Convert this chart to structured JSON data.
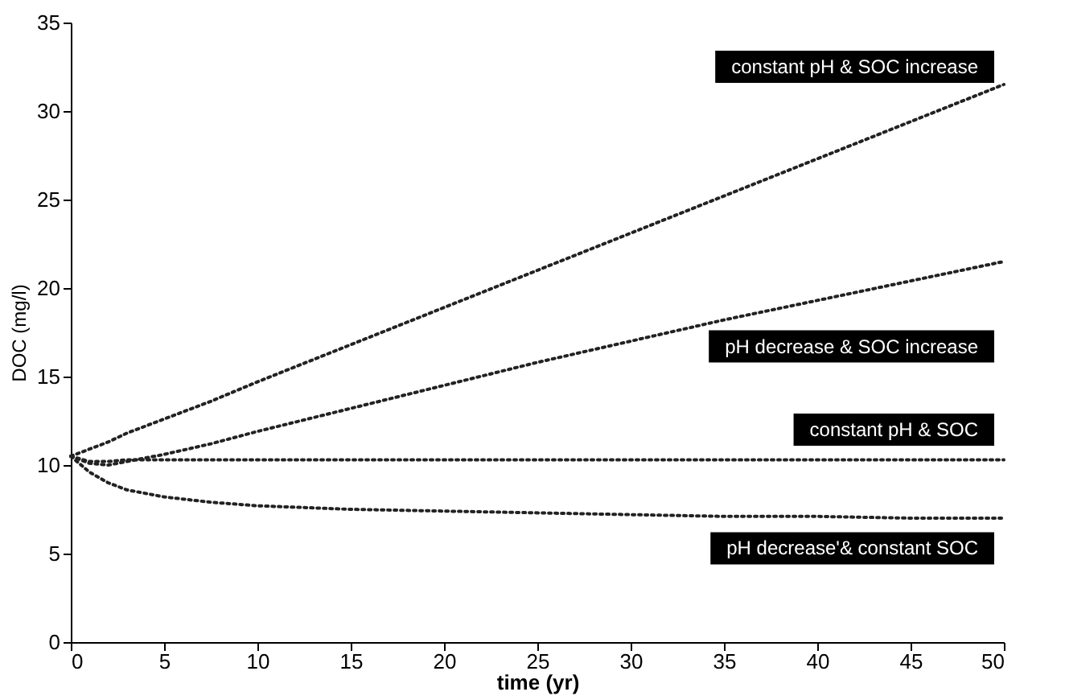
{
  "chart_data": {
    "type": "line",
    "xlabel": "time (yr)",
    "ylabel": "DOC (mg/l)",
    "x": [
      0,
      1,
      2,
      3,
      5,
      7.5,
      10,
      15,
      20,
      25,
      30,
      35,
      40,
      45,
      50
    ],
    "series": [
      {
        "name": "constant pH & SOC increase",
        "color": "#222222",
        "values": [
          10.5,
          10.9,
          11.3,
          11.8,
          12.6,
          13.6,
          14.7,
          16.8,
          18.9,
          21.0,
          23.1,
          25.2,
          27.3,
          29.4,
          31.5
        ]
      },
      {
        "name": "pH decrease & SOC increase",
        "color": "#222222",
        "values": [
          10.5,
          10.1,
          10.0,
          10.2,
          10.6,
          11.2,
          11.9,
          13.2,
          14.5,
          15.8,
          17.0,
          18.2,
          19.3,
          20.4,
          21.5
        ]
      },
      {
        "name": "constant pH & SOC",
        "color": "#222222",
        "values": [
          10.5,
          10.2,
          10.2,
          10.3,
          10.3,
          10.3,
          10.3,
          10.3,
          10.3,
          10.3,
          10.3,
          10.3,
          10.3,
          10.3,
          10.3
        ]
      },
      {
        "name": "pH decrease'& constant SOC",
        "color": "#222222",
        "values": [
          10.5,
          9.6,
          9.0,
          8.6,
          8.2,
          7.9,
          7.7,
          7.5,
          7.4,
          7.3,
          7.2,
          7.1,
          7.1,
          7.0,
          7.0
        ]
      }
    ],
    "xlim": [
      0,
      50
    ],
    "xticks": [
      0,
      5,
      10,
      15,
      20,
      25,
      30,
      35,
      40,
      45,
      50
    ],
    "ylim": [
      0,
      35
    ],
    "yticks": [
      0,
      5,
      10,
      15,
      20,
      25,
      30,
      35
    ],
    "line_style": "dotted",
    "marker": "none",
    "grid": false,
    "legend": false
  }
}
